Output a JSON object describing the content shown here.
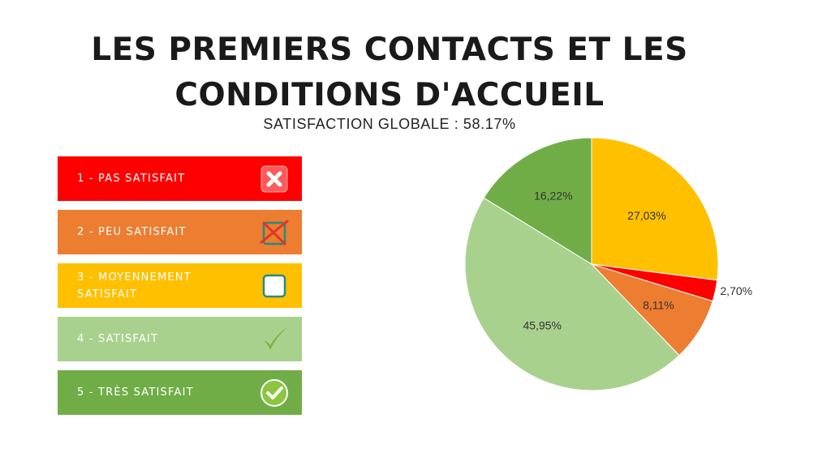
{
  "page": {
    "title_line1": "LES PREMIERS CONTACTS ET LES",
    "title_line2": "CONDITIONS D'ACCUEIL",
    "subtitle": "SATISFACTION GLOBALE : 58.17%"
  },
  "legend": {
    "items": [
      {
        "label": "1 - PAS SATISFAIT",
        "color": "#ff0000",
        "icon": "x-mark-icon"
      },
      {
        "label": "2 - PEU SATISFAIT",
        "color": "#ed7d31",
        "icon": "crossed-box-icon"
      },
      {
        "label_line1": "3 - MOYENNEMENT",
        "label_line2": "SATISFAIT",
        "color": "#ffc000",
        "icon": "empty-box-icon"
      },
      {
        "label": "4 - SATISFAIT",
        "color": "#a9d18e",
        "icon": "check-mark-icon"
      },
      {
        "label": "5 - TRÈS SATISFAIT",
        "color": "#70ad47",
        "icon": "check-circle-icon"
      }
    ]
  },
  "chart_data": {
    "type": "pie",
    "categories": [
      "1 - PAS SATISFAIT",
      "2 - PEU SATISFAIT",
      "3 - MOYENNEMENT SATISFAIT",
      "4 - SATISFAIT",
      "5 - TRÈS SATISFAIT"
    ],
    "values": [
      2.7,
      8.11,
      27.03,
      45.95,
      16.22
    ],
    "labels": [
      "2,70%",
      "8,11%",
      "27,03%",
      "45,95%",
      "16,22%"
    ],
    "colors": [
      "#ff0000",
      "#ed7d31",
      "#ffc000",
      "#a9d18e",
      "#70ad47"
    ],
    "order": [
      2,
      0,
      1,
      3,
      4
    ],
    "start_angle_deg": 0
  }
}
